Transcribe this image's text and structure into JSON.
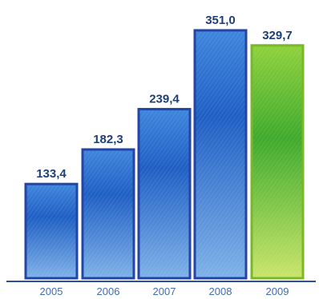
{
  "chart_data": {
    "type": "bar",
    "categories": [
      "2005",
      "2006",
      "2007",
      "2008",
      "2009"
    ],
    "values": [
      133.4,
      182.3,
      239.4,
      351.0,
      329.7
    ],
    "value_labels": [
      "133,4",
      "182,3",
      "239,4",
      "351,0",
      "329,7"
    ],
    "title": "",
    "xlabel": "",
    "ylabel": "",
    "ylim": [
      0,
      360
    ],
    "grid": false,
    "colors": {
      "bar": "#2a6fcf",
      "bar_dark": "#1b4fa8",
      "bar_edge": "#2346a6",
      "highlight_bar": "#5fbf3a",
      "highlight_dark": "#2f9b28",
      "highlight_edge": "#7ab82a",
      "value_text": "#1d3f7a",
      "tick_text": "#3f6cb3",
      "axis": "#2c4f9e"
    },
    "highlight_index": 4
  }
}
